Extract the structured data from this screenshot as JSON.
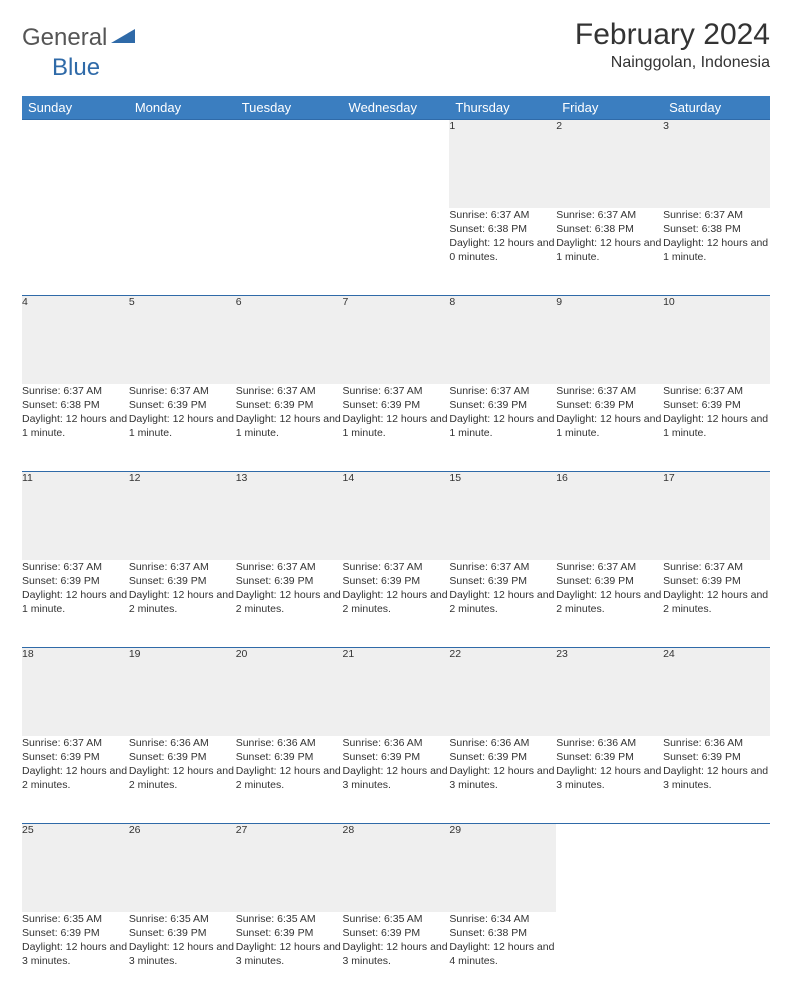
{
  "logo": {
    "part1": "General",
    "part2": "Blue"
  },
  "title": "February 2024",
  "location": "Nainggolan, Indonesia",
  "colors": {
    "header_bg": "#3b7ec0",
    "header_text": "#ffffff",
    "daynum_bg": "#efefef",
    "rule": "#2f6aa8",
    "logo_accent": "#2f6aa8"
  },
  "day_headers": [
    "Sunday",
    "Monday",
    "Tuesday",
    "Wednesday",
    "Thursday",
    "Friday",
    "Saturday"
  ],
  "weeks": [
    [
      null,
      null,
      null,
      null,
      {
        "n": "1",
        "sr": "6:37 AM",
        "ss": "6:38 PM",
        "dl": "12 hours and 0 minutes."
      },
      {
        "n": "2",
        "sr": "6:37 AM",
        "ss": "6:38 PM",
        "dl": "12 hours and 1 minute."
      },
      {
        "n": "3",
        "sr": "6:37 AM",
        "ss": "6:38 PM",
        "dl": "12 hours and 1 minute."
      }
    ],
    [
      {
        "n": "4",
        "sr": "6:37 AM",
        "ss": "6:38 PM",
        "dl": "12 hours and 1 minute."
      },
      {
        "n": "5",
        "sr": "6:37 AM",
        "ss": "6:39 PM",
        "dl": "12 hours and 1 minute."
      },
      {
        "n": "6",
        "sr": "6:37 AM",
        "ss": "6:39 PM",
        "dl": "12 hours and 1 minute."
      },
      {
        "n": "7",
        "sr": "6:37 AM",
        "ss": "6:39 PM",
        "dl": "12 hours and 1 minute."
      },
      {
        "n": "8",
        "sr": "6:37 AM",
        "ss": "6:39 PM",
        "dl": "12 hours and 1 minute."
      },
      {
        "n": "9",
        "sr": "6:37 AM",
        "ss": "6:39 PM",
        "dl": "12 hours and 1 minute."
      },
      {
        "n": "10",
        "sr": "6:37 AM",
        "ss": "6:39 PM",
        "dl": "12 hours and 1 minute."
      }
    ],
    [
      {
        "n": "11",
        "sr": "6:37 AM",
        "ss": "6:39 PM",
        "dl": "12 hours and 1 minute."
      },
      {
        "n": "12",
        "sr": "6:37 AM",
        "ss": "6:39 PM",
        "dl": "12 hours and 2 minutes."
      },
      {
        "n": "13",
        "sr": "6:37 AM",
        "ss": "6:39 PM",
        "dl": "12 hours and 2 minutes."
      },
      {
        "n": "14",
        "sr": "6:37 AM",
        "ss": "6:39 PM",
        "dl": "12 hours and 2 minutes."
      },
      {
        "n": "15",
        "sr": "6:37 AM",
        "ss": "6:39 PM",
        "dl": "12 hours and 2 minutes."
      },
      {
        "n": "16",
        "sr": "6:37 AM",
        "ss": "6:39 PM",
        "dl": "12 hours and 2 minutes."
      },
      {
        "n": "17",
        "sr": "6:37 AM",
        "ss": "6:39 PM",
        "dl": "12 hours and 2 minutes."
      }
    ],
    [
      {
        "n": "18",
        "sr": "6:37 AM",
        "ss": "6:39 PM",
        "dl": "12 hours and 2 minutes."
      },
      {
        "n": "19",
        "sr": "6:36 AM",
        "ss": "6:39 PM",
        "dl": "12 hours and 2 minutes."
      },
      {
        "n": "20",
        "sr": "6:36 AM",
        "ss": "6:39 PM",
        "dl": "12 hours and 2 minutes."
      },
      {
        "n": "21",
        "sr": "6:36 AM",
        "ss": "6:39 PM",
        "dl": "12 hours and 3 minutes."
      },
      {
        "n": "22",
        "sr": "6:36 AM",
        "ss": "6:39 PM",
        "dl": "12 hours and 3 minutes."
      },
      {
        "n": "23",
        "sr": "6:36 AM",
        "ss": "6:39 PM",
        "dl": "12 hours and 3 minutes."
      },
      {
        "n": "24",
        "sr": "6:36 AM",
        "ss": "6:39 PM",
        "dl": "12 hours and 3 minutes."
      }
    ],
    [
      {
        "n": "25",
        "sr": "6:35 AM",
        "ss": "6:39 PM",
        "dl": "12 hours and 3 minutes."
      },
      {
        "n": "26",
        "sr": "6:35 AM",
        "ss": "6:39 PM",
        "dl": "12 hours and 3 minutes."
      },
      {
        "n": "27",
        "sr": "6:35 AM",
        "ss": "6:39 PM",
        "dl": "12 hours and 3 minutes."
      },
      {
        "n": "28",
        "sr": "6:35 AM",
        "ss": "6:39 PM",
        "dl": "12 hours and 3 minutes."
      },
      {
        "n": "29",
        "sr": "6:34 AM",
        "ss": "6:38 PM",
        "dl": "12 hours and 4 minutes."
      },
      null,
      null
    ]
  ],
  "labels": {
    "sunrise": "Sunrise: ",
    "sunset": "Sunset: ",
    "daylight": "Daylight: "
  }
}
